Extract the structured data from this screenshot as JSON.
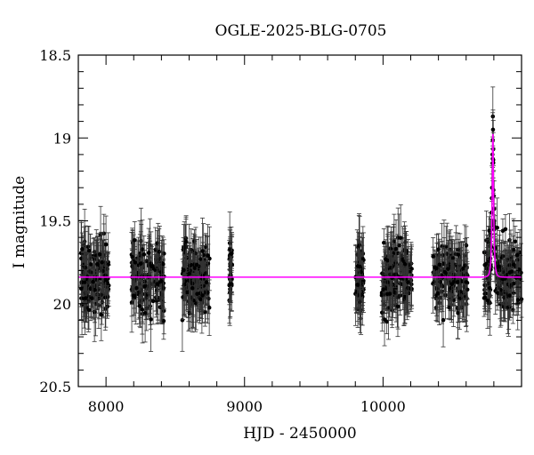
{
  "chart_data": {
    "type": "scatter",
    "title": "OGLE-2025-BLG-0705",
    "xlabel": "HJD - 2450000",
    "ylabel": "I magnitude",
    "xlim": [
      7800,
      11000
    ],
    "ylim": [
      20.5,
      18.5
    ],
    "y_inverted": true,
    "xticks": [
      8000,
      9000,
      10000
    ],
    "xtick_labels": [
      "8000",
      "9000",
      "10000"
    ],
    "yticks": [
      18.5,
      19,
      19.5,
      20,
      20.5
    ],
    "ytick_labels": [
      "18.5",
      "19",
      "19.5",
      "20",
      "20.5"
    ],
    "grid": false,
    "colors": {
      "points": "#000000",
      "model": "#ff00ff"
    },
    "baseline_mag": 19.84,
    "seasons": [
      {
        "x_start": 7820,
        "x_end": 8020,
        "n_points": 150
      },
      {
        "x_start": 8180,
        "x_end": 8420,
        "n_points": 150
      },
      {
        "x_start": 8550,
        "x_end": 8750,
        "n_points": 140
      },
      {
        "x_start": 8890,
        "x_end": 8910,
        "n_points": 30
      },
      {
        "x_start": 9800,
        "x_end": 9860,
        "n_points": 55
      },
      {
        "x_start": 9990,
        "x_end": 10210,
        "n_points": 150
      },
      {
        "x_start": 10360,
        "x_end": 10610,
        "n_points": 150
      },
      {
        "x_start": 10730,
        "x_end": 11000,
        "n_points": 170
      }
    ],
    "event": {
      "peak_x": 10793,
      "peak_mag": 18.95,
      "width_days": 12,
      "peak_points": [
        {
          "x": 10793,
          "y": 18.87
        },
        {
          "x": 10794,
          "y": 18.95
        },
        {
          "x": 10790,
          "y": 19.1
        },
        {
          "x": 10796,
          "y": 19.15
        },
        {
          "x": 10787,
          "y": 19.3
        },
        {
          "x": 10799,
          "y": 19.35
        },
        {
          "x": 10784,
          "y": 19.45
        },
        {
          "x": 10802,
          "y": 19.5
        }
      ]
    },
    "model": {
      "name": "",
      "type": "point-lens",
      "baseline_mag": 19.84,
      "peak_x": 10793,
      "peak_mag": 18.95
    }
  }
}
